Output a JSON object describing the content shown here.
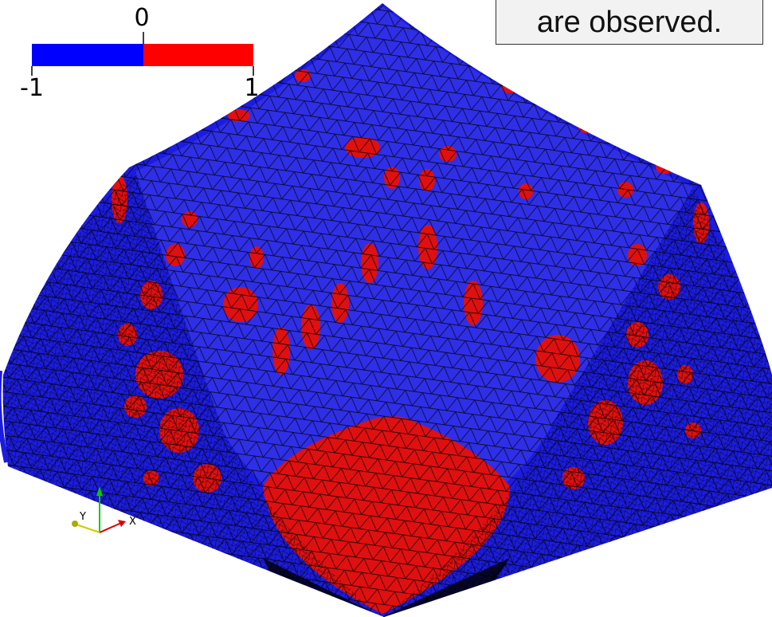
{
  "colorbar": {
    "min": -1,
    "mid": 0,
    "max": 1
  },
  "annotation": "are observed.",
  "orientation_axes": {
    "x": "X",
    "y": "Y"
  }
}
